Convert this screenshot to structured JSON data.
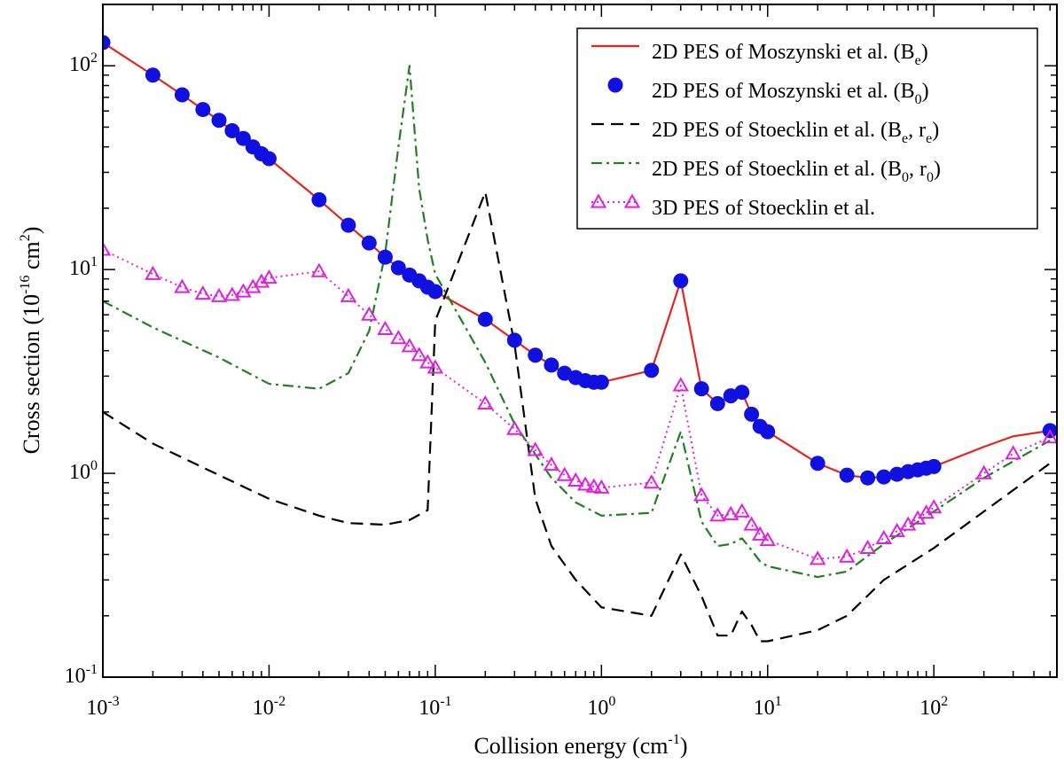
{
  "chart_data": {
    "type": "line",
    "xscale": "log",
    "yscale": "log",
    "xlim": [
      0.001,
      550
    ],
    "ylim": [
      0.1,
      200
    ],
    "xlabel": "Collision energy (cm",
    "xlabel_exp": "-1",
    "xlabel_end": ")",
    "ylabel": "Cross section (10",
    "ylabel_exp1": "-16",
    "ylabel_mid": " cm",
    "ylabel_exp2": "2",
    "ylabel_end": ")",
    "x_ticks": [
      {
        "value": 0.001,
        "base": "10",
        "exp": "-3"
      },
      {
        "value": 0.01,
        "base": "10",
        "exp": "-2"
      },
      {
        "value": 0.1,
        "base": "10",
        "exp": "-1"
      },
      {
        "value": 1,
        "base": "10",
        "exp": "0"
      },
      {
        "value": 10,
        "base": "10",
        "exp": "1"
      },
      {
        "value": 100,
        "base": "10",
        "exp": "2"
      }
    ],
    "y_ticks": [
      {
        "value": 0.1,
        "base": "10",
        "exp": "-1"
      },
      {
        "value": 1,
        "base": "10",
        "exp": "0"
      },
      {
        "value": 10,
        "base": "10",
        "exp": "1"
      },
      {
        "value": 100,
        "base": "10",
        "exp": "2"
      }
    ],
    "legend_position": "top-right",
    "series": [
      {
        "name": "2D PES of Moszynski et al. (Be)",
        "legend_main": "2D PES of Moszynski et al. (B",
        "legend_sub": "e",
        "legend_end": ")",
        "color": "#e8231b",
        "style": "solid",
        "marker": "none",
        "x": [
          0.001,
          0.002,
          0.003,
          0.004,
          0.005,
          0.006,
          0.007,
          0.008,
          0.009,
          0.01,
          0.02,
          0.03,
          0.04,
          0.05,
          0.06,
          0.07,
          0.08,
          0.09,
          0.1,
          0.2,
          0.3,
          0.4,
          0.5,
          0.6,
          0.7,
          0.8,
          0.9,
          1,
          2,
          3,
          4,
          5,
          6,
          7,
          8,
          9,
          10,
          20,
          30,
          40,
          50,
          60,
          70,
          80,
          90,
          100,
          200,
          300,
          500
        ],
        "y": [
          130,
          90,
          72,
          61,
          54,
          48,
          44,
          40,
          37,
          35,
          22,
          16.5,
          13.5,
          11.5,
          10.2,
          9.4,
          8.8,
          8.2,
          7.8,
          5.7,
          4.5,
          3.8,
          3.4,
          3.1,
          2.95,
          2.85,
          2.8,
          2.8,
          3.2,
          8.8,
          2.6,
          2.2,
          2.4,
          2.5,
          1.95,
          1.7,
          1.6,
          1.12,
          0.98,
          0.95,
          0.96,
          0.99,
          1.02,
          1.04,
          1.06,
          1.08,
          1.35,
          1.52,
          1.62
        ]
      },
      {
        "name": "2D PES of Moszynski et al. (B0)",
        "legend_main": "2D PES of Moszynski et al. (B",
        "legend_sub": "0",
        "legend_end": ")",
        "color": "#1010e0",
        "style": "none",
        "marker": "circle",
        "x": [
          0.001,
          0.002,
          0.003,
          0.004,
          0.005,
          0.006,
          0.007,
          0.008,
          0.009,
          0.01,
          0.02,
          0.03,
          0.04,
          0.05,
          0.06,
          0.07,
          0.08,
          0.09,
          0.1,
          0.2,
          0.3,
          0.4,
          0.5,
          0.6,
          0.7,
          0.8,
          0.9,
          1,
          2,
          3,
          4,
          5,
          6,
          7,
          8,
          9,
          10,
          20,
          30,
          40,
          50,
          60,
          70,
          80,
          90,
          100,
          500
        ],
        "y": [
          130,
          90,
          72,
          61,
          54,
          48,
          44,
          40,
          37,
          35,
          22,
          16.5,
          13.5,
          11.5,
          10.2,
          9.4,
          8.8,
          8.2,
          7.8,
          5.7,
          4.5,
          3.8,
          3.4,
          3.1,
          2.95,
          2.85,
          2.8,
          2.8,
          3.2,
          8.8,
          2.6,
          2.2,
          2.4,
          2.5,
          1.95,
          1.7,
          1.6,
          1.12,
          0.98,
          0.95,
          0.96,
          0.99,
          1.02,
          1.04,
          1.06,
          1.08,
          1.62
        ]
      },
      {
        "name": "2D PES of Stoecklin et al. (Be, re)",
        "legend_main": "2D PES of Stoecklin et al. (B",
        "legend_sub": "e",
        "legend_mid": ", r",
        "legend_sub2": "e",
        "legend_end": ")",
        "color": "#000000",
        "style": "dashed",
        "marker": "none",
        "x": [
          0.001,
          0.002,
          0.005,
          0.01,
          0.02,
          0.03,
          0.05,
          0.07,
          0.09,
          0.1,
          0.2,
          0.3,
          0.4,
          0.5,
          0.7,
          1,
          2,
          3,
          4,
          5,
          6,
          7,
          8,
          9,
          10,
          20,
          30,
          50,
          100,
          200,
          500
        ],
        "y": [
          2.0,
          1.4,
          0.98,
          0.75,
          0.62,
          0.57,
          0.56,
          0.59,
          0.66,
          5.6,
          24,
          4.3,
          0.75,
          0.44,
          0.3,
          0.22,
          0.2,
          0.4,
          0.25,
          0.16,
          0.16,
          0.21,
          0.18,
          0.15,
          0.15,
          0.17,
          0.2,
          0.3,
          0.43,
          0.65,
          1.12
        ]
      },
      {
        "name": "2D PES of Stoecklin et al. (B0, r0)",
        "legend_main": "2D PES of Stoecklin et al. (B",
        "legend_sub": "0",
        "legend_mid": ", r",
        "legend_sub2": "0",
        "legend_end": ")",
        "color": "#208020",
        "style": "dashdot",
        "marker": "none",
        "x": [
          0.001,
          0.002,
          0.005,
          0.01,
          0.02,
          0.03,
          0.04,
          0.05,
          0.06,
          0.07,
          0.08,
          0.09,
          0.1,
          0.2,
          0.3,
          0.5,
          0.7,
          1,
          2,
          3,
          4,
          5,
          6,
          7,
          8,
          9,
          10,
          20,
          30,
          50,
          100,
          200,
          500
        ],
        "y": [
          7.0,
          5.2,
          3.7,
          2.75,
          2.6,
          3.1,
          5.0,
          12,
          40,
          100,
          25,
          14,
          9.5,
          3.5,
          1.75,
          0.95,
          0.72,
          0.62,
          0.64,
          1.6,
          0.58,
          0.44,
          0.45,
          0.48,
          0.42,
          0.37,
          0.35,
          0.31,
          0.33,
          0.45,
          0.65,
          0.95,
          1.45
        ]
      },
      {
        "name": "3D PES of Stoecklin et al.",
        "legend_main": "3D PES of Stoecklin et al.",
        "color": "#e020e0",
        "style": "dotted",
        "marker": "triangle",
        "x": [
          0.001,
          0.002,
          0.003,
          0.004,
          0.005,
          0.006,
          0.007,
          0.008,
          0.009,
          0.01,
          0.02,
          0.03,
          0.04,
          0.05,
          0.06,
          0.07,
          0.08,
          0.09,
          0.1,
          0.2,
          0.3,
          0.4,
          0.5,
          0.6,
          0.7,
          0.8,
          0.9,
          1,
          2,
          3,
          4,
          5,
          6,
          7,
          8,
          9,
          10,
          20,
          30,
          40,
          50,
          60,
          70,
          80,
          90,
          100,
          200,
          300,
          500
        ],
        "y": [
          12.5,
          9.5,
          8.2,
          7.6,
          7.4,
          7.5,
          7.8,
          8.2,
          8.7,
          9.1,
          9.8,
          7.4,
          6.0,
          5.1,
          4.6,
          4.2,
          3.8,
          3.5,
          3.3,
          2.2,
          1.65,
          1.3,
          1.1,
          0.98,
          0.92,
          0.88,
          0.86,
          0.85,
          0.9,
          2.7,
          0.78,
          0.62,
          0.63,
          0.65,
          0.56,
          0.5,
          0.47,
          0.38,
          0.39,
          0.43,
          0.48,
          0.52,
          0.56,
          0.6,
          0.64,
          0.68,
          1.0,
          1.25,
          1.5
        ]
      }
    ]
  }
}
